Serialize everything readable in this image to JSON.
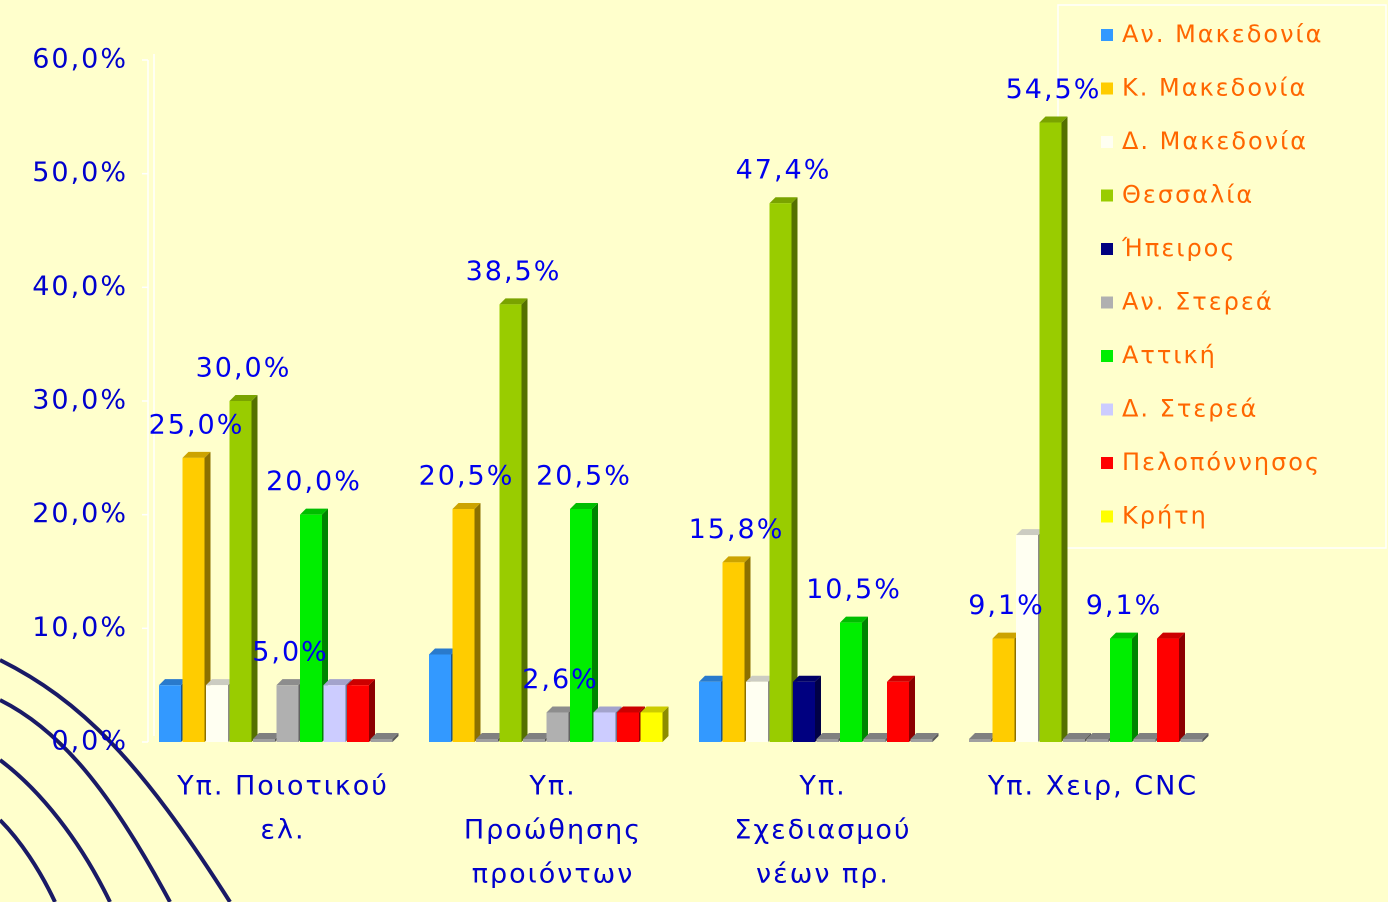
{
  "chart_data": {
    "type": "bar3d",
    "categories": [
      [
        "Υπ. Ποιοτικού",
        "ελ."
      ],
      [
        "Υπ.",
        "Προώθησης",
        "προιόντων"
      ],
      [
        "Υπ.",
        "Σχεδιασμού",
        "νέων πρ."
      ],
      [
        "Υπ. Χειρ, CNC"
      ]
    ],
    "series": [
      {
        "name": "Αν. Μακεδονία",
        "color": "#3399ff",
        "values": [
          5.0,
          7.7,
          5.3,
          0
        ]
      },
      {
        "name": "Κ. Μακεδονία",
        "color": "#ffcc00",
        "values": [
          25.0,
          20.5,
          15.8,
          9.1
        ],
        "value_labels": [
          "25,0%",
          "20,5%",
          "15,8%",
          "9,1%"
        ]
      },
      {
        "name": "Δ. Μακεδονία",
        "color": "#fffff2",
        "values": [
          5.0,
          0,
          5.3,
          18.2
        ]
      },
      {
        "name": "Θεσσαλία",
        "color": "#99cc00",
        "values": [
          30.0,
          38.5,
          47.4,
          54.5
        ],
        "value_labels": [
          "30,0%",
          "38,5%",
          "47,4%",
          "54,5%"
        ]
      },
      {
        "name": "Ήπειρος",
        "color": "#000080",
        "values": [
          0,
          0,
          5.3,
          0
        ]
      },
      {
        "name": "Αν. Στερεά",
        "color": "#b0b0b0",
        "values": [
          5.0,
          2.6,
          0,
          0
        ],
        "value_labels": [
          "5,0%",
          "2,6%",
          null,
          null
        ]
      },
      {
        "name": "Αττική",
        "color": "#00ee00",
        "values": [
          20.0,
          20.5,
          10.5,
          9.1
        ],
        "value_labels": [
          "20,0%",
          "20,5%",
          "10,5%",
          "9,1%"
        ]
      },
      {
        "name": "Δ. Στερεά",
        "color": "#ccccff",
        "values": [
          5.0,
          2.6,
          0,
          0
        ]
      },
      {
        "name": "Πελοπόννησος",
        "color": "#ff0000",
        "values": [
          5.0,
          2.6,
          5.3,
          9.1
        ]
      },
      {
        "name": "Κρήτη",
        "color": "#ffff00",
        "values": [
          0,
          2.6,
          0,
          0
        ]
      }
    ],
    "ylim": [
      0,
      60
    ],
    "yticks": [
      {
        "value": 0,
        "label": "0,0%"
      },
      {
        "value": 10,
        "label": "10,0%"
      },
      {
        "value": 20,
        "label": "20,0%"
      },
      {
        "value": 30,
        "label": "30,0%"
      },
      {
        "value": 40,
        "label": "40,0%"
      },
      {
        "value": 50,
        "label": "50,0%"
      },
      {
        "value": 60,
        "label": "60,0%"
      }
    ],
    "legend": "top-right"
  }
}
